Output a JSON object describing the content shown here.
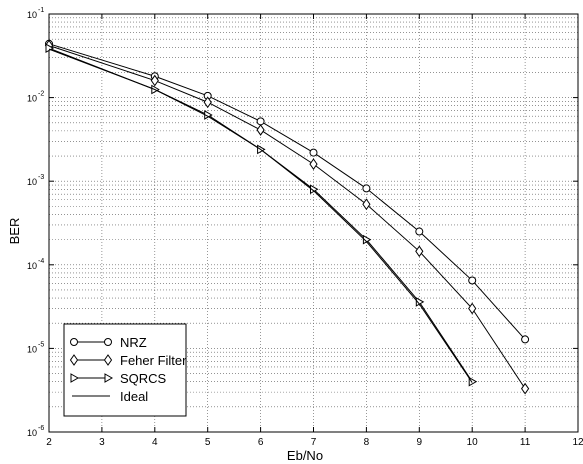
{
  "chart_data": {
    "type": "line",
    "xlabel": "Eb/No",
    "ylabel": "BER",
    "xlim": [
      2,
      12
    ],
    "ylim": [
      1e-06,
      0.1
    ],
    "yscale": "log",
    "grid": true,
    "legend_position": "bottom-left",
    "x_ticks": [
      "2",
      "3",
      "4",
      "5",
      "6",
      "7",
      "8",
      "9",
      "10",
      "11",
      "12"
    ],
    "y_ticks": [
      {
        "value": 1e-06,
        "base": "10",
        "exp": "-6"
      },
      {
        "value": 1e-05,
        "base": "10",
        "exp": "-5"
      },
      {
        "value": 0.0001,
        "base": "10",
        "exp": "-4"
      },
      {
        "value": 0.001,
        "base": "10",
        "exp": "-3"
      },
      {
        "value": 0.01,
        "base": "10",
        "exp": "-2"
      },
      {
        "value": 0.1,
        "base": "10",
        "exp": "-1"
      }
    ],
    "series": [
      {
        "name": "NRZ",
        "marker": "circle",
        "x": [
          2,
          4,
          5,
          6,
          7,
          8,
          9,
          10,
          11
        ],
        "y": [
          0.044,
          0.018,
          0.0105,
          0.0052,
          0.0022,
          0.00082,
          0.00025,
          6.5e-05,
          1.28e-05
        ]
      },
      {
        "name": "Feher Filter",
        "marker": "diamond",
        "x": [
          2,
          4,
          5,
          6,
          7,
          8,
          9,
          10,
          11
        ],
        "y": [
          0.042,
          0.016,
          0.0088,
          0.0041,
          0.0016,
          0.00053,
          0.000145,
          3e-05,
          3.3e-06
        ]
      },
      {
        "name": "SQRCS",
        "marker": "triangle-right",
        "x": [
          2,
          4,
          5,
          6,
          7,
          8,
          9,
          10
        ],
        "y": [
          0.039,
          0.0125,
          0.0062,
          0.0024,
          0.0008,
          0.0002,
          3.6e-05,
          4e-06
        ]
      },
      {
        "name": "Ideal",
        "marker": "none",
        "x": [
          2,
          4,
          5,
          6,
          7,
          8,
          9,
          10
        ],
        "y": [
          0.038,
          0.0125,
          0.006,
          0.0024,
          0.00077,
          0.00019,
          3.4e-05,
          3.9e-06
        ]
      }
    ]
  }
}
